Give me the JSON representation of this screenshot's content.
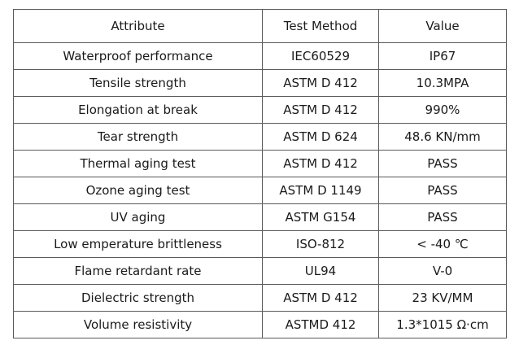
{
  "table": {
    "headers": [
      "Attribute",
      "Test Method",
      "Value"
    ],
    "rows": [
      [
        "Waterproof performance",
        "IEC60529",
        "IP67"
      ],
      [
        "Tensile strength",
        "ASTM D 412",
        "10.3MPA"
      ],
      [
        "Elongation at break",
        "ASTM D 412",
        "990%"
      ],
      [
        "Tear strength",
        "ASTM D 624",
        "48.6 KN/mm"
      ],
      [
        "Thermal aging test",
        "ASTM D 412",
        "PASS"
      ],
      [
        "Ozone aging test",
        "ASTM D 1149",
        "PASS"
      ],
      [
        "UV aging",
        "ASTM G154",
        "PASS"
      ],
      [
        "Low emperature brittleness",
        "ISO-812",
        "< -40 ℃"
      ],
      [
        "Flame retardant rate",
        "UL94",
        "V-0"
      ],
      [
        "Dielectric strength",
        "ASTM D 412",
        "23 KV/MM"
      ],
      [
        "Volume resistivity",
        "ASTMD 412",
        "1.3*1015  Ω·cm"
      ]
    ]
  }
}
